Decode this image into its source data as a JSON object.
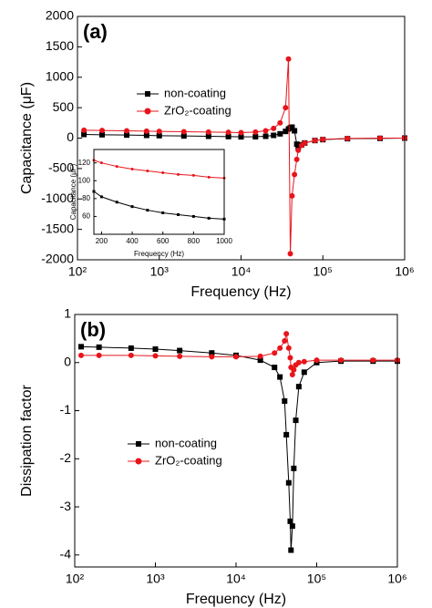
{
  "chart_data": [
    {
      "type": "line",
      "panel_label": "(a)",
      "xlabel": "Frequency (Hz)",
      "ylabel": "Capacitance (μF)",
      "log_x": true,
      "x": [
        120,
        200,
        400,
        700,
        1000,
        2000,
        4000,
        7000,
        10000,
        15000,
        20000,
        25000,
        30000,
        35000,
        38000,
        40000,
        42000,
        45000,
        48000,
        50000,
        55000,
        60000,
        80000,
        100000,
        200000,
        500000,
        1000000
      ],
      "series": [
        {
          "name": "non-coating",
          "color": "#000000",
          "marker": "square",
          "values": [
            60,
            55,
            50,
            45,
            40,
            35,
            30,
            25,
            20,
            22,
            30,
            45,
            70,
            110,
            150,
            170,
            180,
            120,
            -100,
            -150,
            -110,
            -80,
            -40,
            -25,
            -10,
            -5,
            0
          ]
        },
        {
          "name": "ZrO₂-coating",
          "color": "#e8141b",
          "marker": "circle",
          "values": [
            130,
            125,
            120,
            115,
            110,
            105,
            100,
            95,
            90,
            100,
            120,
            160,
            250,
            500,
            1300,
            -1900,
            -950,
            -600,
            -350,
            -200,
            -120,
            -80,
            -40,
            -20,
            -5,
            0,
            0
          ]
        }
      ],
      "xlim": [
        100,
        1000000
      ],
      "ylim": [
        -2000,
        2000
      ],
      "xticks": [
        {
          "value": 100,
          "label": "10²"
        },
        {
          "value": 1000,
          "label": "10³"
        },
        {
          "value": 10000,
          "label": "10⁴"
        },
        {
          "value": 100000,
          "label": "10⁵"
        },
        {
          "value": 1000000,
          "label": "10⁶"
        }
      ],
      "yticks": [
        -2000,
        -1500,
        -1000,
        -500,
        0,
        500,
        1000,
        1500,
        2000
      ]
    },
    {
      "type": "line",
      "xlabel": "Frequency (Hz)",
      "ylabel": "Capacitance (μF)",
      "log_x": false,
      "x": [
        150,
        200,
        300,
        400,
        500,
        600,
        700,
        800,
        900,
        1000
      ],
      "series": [
        {
          "color": "#000000",
          "marker": "square",
          "values": [
            88,
            82,
            76,
            71,
            67,
            64,
            62,
            60,
            58,
            57
          ]
        },
        {
          "color": "#e8141b",
          "marker": "circle",
          "values": [
            123,
            120,
            116,
            113,
            111,
            109,
            107,
            106,
            104,
            103
          ]
        }
      ],
      "xlim": [
        150,
        1000
      ],
      "ylim": [
        40,
        135
      ],
      "xticks": [
        200,
        400,
        600,
        800,
        1000
      ],
      "yticks": [
        60,
        80,
        100,
        120
      ]
    },
    {
      "type": "line",
      "panel_label": "(b)",
      "xlabel": "Frequency (Hz)",
      "ylabel": "Dissipation factor",
      "log_x": true,
      "x": [
        120,
        200,
        500,
        1000,
        2000,
        5000,
        10000,
        20000,
        30000,
        35000,
        40000,
        42000,
        45000,
        47000,
        48000,
        50000,
        52000,
        55000,
        60000,
        70000,
        100000,
        200000,
        500000,
        1000000
      ],
      "series": [
        {
          "name": "non-coating",
          "color": "#000000",
          "marker": "square",
          "values": [
            0.33,
            0.32,
            0.3,
            0.28,
            0.25,
            0.2,
            0.15,
            0.05,
            -0.1,
            -0.3,
            -0.8,
            -1.5,
            -2.5,
            -3.3,
            -3.9,
            -3.4,
            -2.2,
            -1.2,
            -0.5,
            -0.2,
            0,
            0.03,
            0.03,
            0.03
          ]
        },
        {
          "name": "ZrO₂-coating",
          "color": "#e8141b",
          "marker": "circle",
          "values": [
            0.15,
            0.15,
            0.15,
            0.14,
            0.13,
            0.12,
            0.12,
            0.13,
            0.2,
            0.3,
            0.45,
            0.6,
            0.3,
            0.1,
            -0.1,
            -0.25,
            -0.15,
            -0.05,
            0,
            0.02,
            0.05,
            0.05,
            0.05,
            0.05
          ]
        }
      ],
      "xlim": [
        100,
        1000000
      ],
      "ylim": [
        -4.25,
        1
      ],
      "xticks": [
        {
          "value": 100,
          "label": "10²"
        },
        {
          "value": 1000,
          "label": "10³"
        },
        {
          "value": 10000,
          "label": "10⁴"
        },
        {
          "value": 100000,
          "label": "10⁵"
        },
        {
          "value": 1000000,
          "label": "10⁶"
        }
      ],
      "yticks": [
        -4,
        -3,
        -2,
        -1,
        0,
        1
      ]
    }
  ]
}
